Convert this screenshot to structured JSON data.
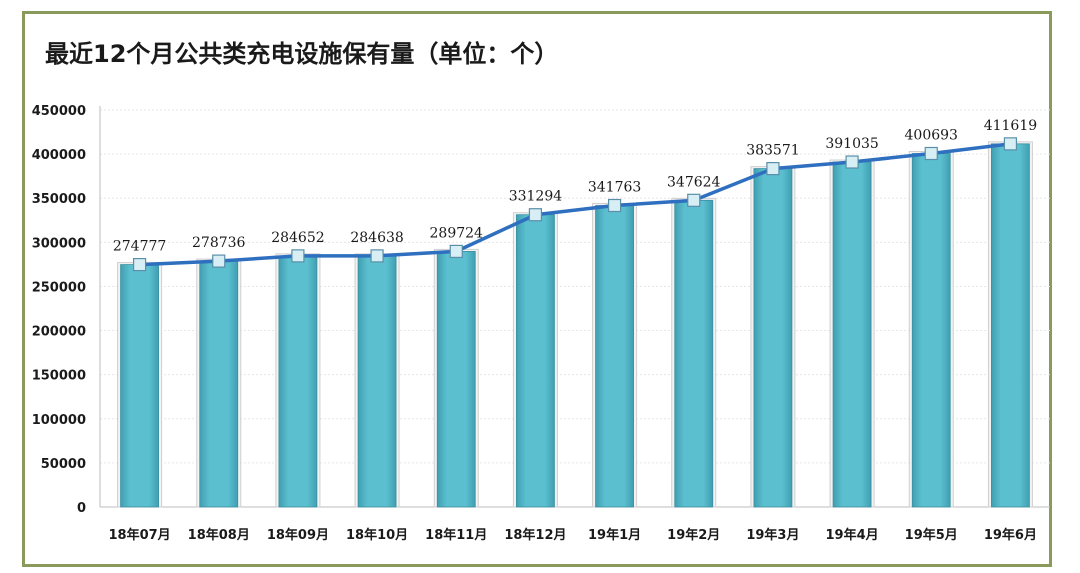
{
  "chart_data": {
    "type": "bar",
    "title": "最近12个月公共类充电设施保有量（单位：个）",
    "categories": [
      "18年07月",
      "18年08月",
      "18年09月",
      "18年10月",
      "18年11月",
      "18年12月",
      "19年1月",
      "19年2月",
      "19年3月",
      "19年4月",
      "19年5月",
      "19年6月"
    ],
    "values": [
      274777,
      278736,
      284652,
      284638,
      289724,
      331294,
      341763,
      347624,
      383571,
      391035,
      400693,
      411619
    ],
    "value_labels": [
      "274777",
      "278736",
      "284652",
      "284638",
      "289724",
      "331294",
      "341763",
      "347624",
      "383571",
      "391035",
      "400693",
      "411619"
    ],
    "ylim": [
      0,
      450000
    ],
    "yticks": [
      0,
      50000,
      100000,
      150000,
      200000,
      250000,
      300000,
      350000,
      400000,
      450000
    ],
    "ytick_labels": [
      "0",
      "50000",
      "100000",
      "150000",
      "200000",
      "250000",
      "300000",
      "350000",
      "400000",
      "450000"
    ],
    "overlay": "line",
    "grid": true,
    "colors": {
      "bar": "#5bbfcf",
      "bar_edge": "#3a8fa0",
      "line": "#2f6fbf",
      "marker": "#d8eef5",
      "frame": "#8a9a5b"
    }
  }
}
